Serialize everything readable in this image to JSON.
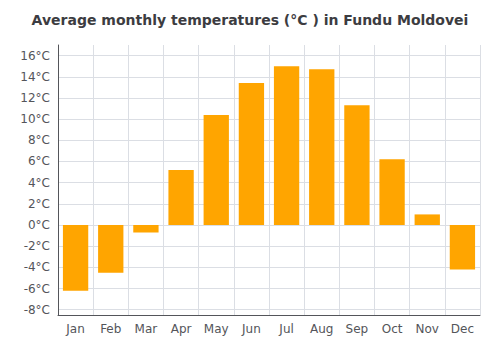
{
  "chart_data": {
    "type": "bar",
    "title": "Average monthly temperatures (°C ) in Fundu Moldovei",
    "categories": [
      "Jan",
      "Feb",
      "Mar",
      "Apr",
      "May",
      "Jun",
      "Jul",
      "Aug",
      "Sep",
      "Oct",
      "Nov",
      "Dec"
    ],
    "values": [
      -6.2,
      -4.5,
      -0.7,
      5.2,
      10.4,
      13.4,
      15.0,
      14.7,
      11.3,
      6.2,
      1.0,
      -4.2
    ],
    "color": "#FFA500",
    "ylim": [
      -8.5,
      17
    ],
    "yticks": [
      {
        "value": -8,
        "label": "-8°C"
      },
      {
        "value": -6,
        "label": "-6°C"
      },
      {
        "value": -4,
        "label": "-4°C"
      },
      {
        "value": -2,
        "label": "-2°C"
      },
      {
        "value": 0,
        "label": "0°C"
      },
      {
        "value": 2,
        "label": "2°C"
      },
      {
        "value": 4,
        "label": "4°C"
      },
      {
        "value": 6,
        "label": "6°C"
      },
      {
        "value": 8,
        "label": "8°C"
      },
      {
        "value": 10,
        "label": "10°C"
      },
      {
        "value": 12,
        "label": "12°C"
      },
      {
        "value": 14,
        "label": "14°C"
      },
      {
        "value": 16,
        "label": "16°C"
      }
    ],
    "grid": true
  }
}
